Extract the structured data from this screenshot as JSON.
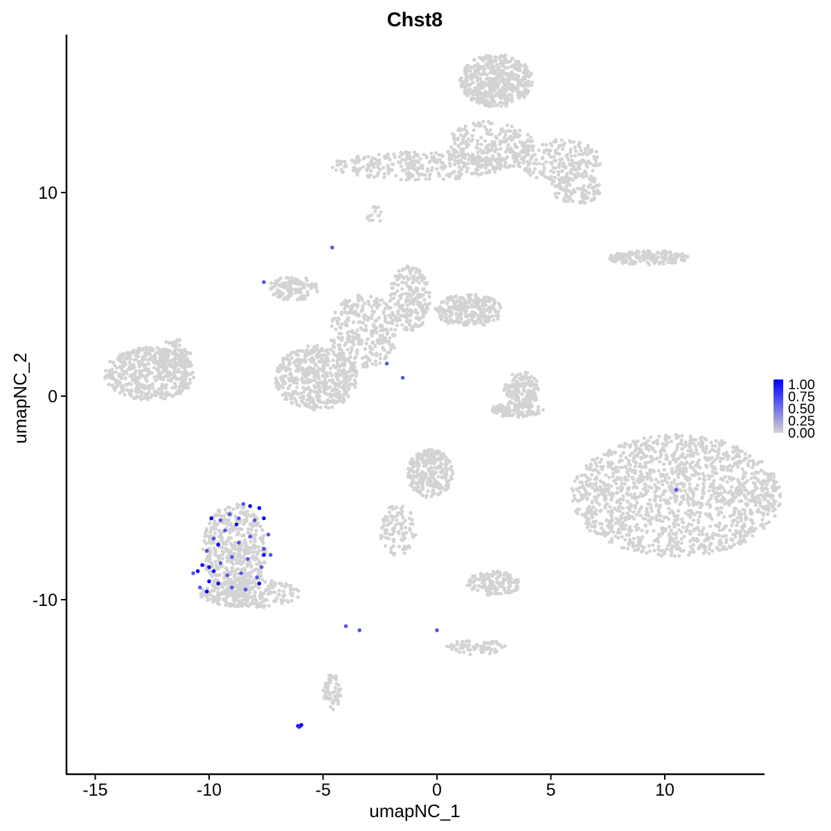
{
  "chart_data": {
    "type": "scatter",
    "title": "Chst8",
    "xlabel": "umapNC_1",
    "ylabel": "umapNC_2",
    "xlim": [
      -16.5,
      14.4
    ],
    "ylim": [
      -18.5,
      17.7
    ],
    "xticks": [
      -15,
      -10,
      -5,
      0,
      5,
      10
    ],
    "yticks": [
      -10,
      0,
      10
    ],
    "grid": false,
    "legend": {
      "placement": "right",
      "labels": [
        "1.00",
        "0.75",
        "0.50",
        "0.25",
        "0.00"
      ],
      "low_color": "#d3d3d3",
      "high_color": "#0000ff"
    },
    "background_color": "#d3d3d3",
    "clusters": [
      {
        "cx": 2.6,
        "cy": 15.5,
        "rx": 1.6,
        "ry": 1.3,
        "n": 500
      },
      {
        "cx": 2.3,
        "cy": 12.3,
        "rx": 2.0,
        "ry": 1.2,
        "n": 250
      },
      {
        "cx": -0.8,
        "cy": 11.3,
        "rx": 3.8,
        "ry": 0.7,
        "n": 300
      },
      {
        "cx": 5.3,
        "cy": 11.6,
        "rx": 1.9,
        "ry": 1.0,
        "n": 200
      },
      {
        "cx": 6.1,
        "cy": 10.2,
        "rx": 1.1,
        "ry": 0.8,
        "n": 120
      },
      {
        "cx": -2.7,
        "cy": 8.9,
        "rx": 0.4,
        "ry": 0.4,
        "n": 15
      },
      {
        "cx": 9.3,
        "cy": 6.8,
        "rx": 1.8,
        "ry": 0.35,
        "n": 150
      },
      {
        "cx": -12.6,
        "cy": 1.1,
        "rx": 2.0,
        "ry": 1.3,
        "n": 500
      },
      {
        "cx": -11.5,
        "cy": 2.1,
        "rx": 0.7,
        "ry": 0.7,
        "n": 60
      },
      {
        "cx": -5.3,
        "cy": 0.9,
        "rx": 1.8,
        "ry": 1.6,
        "n": 500
      },
      {
        "cx": -3.2,
        "cy": 3.2,
        "rx": 1.5,
        "ry": 1.8,
        "n": 300
      },
      {
        "cx": -1.2,
        "cy": 4.8,
        "rx": 0.9,
        "ry": 1.6,
        "n": 200
      },
      {
        "cx": 1.4,
        "cy": 4.2,
        "rx": 1.5,
        "ry": 0.8,
        "n": 250
      },
      {
        "cx": -6.3,
        "cy": 5.3,
        "rx": 1.1,
        "ry": 0.6,
        "n": 120
      },
      {
        "cx": 3.7,
        "cy": 0.3,
        "rx": 0.8,
        "ry": 0.9,
        "n": 150
      },
      {
        "cx": 3.5,
        "cy": -0.7,
        "rx": 1.2,
        "ry": 0.35,
        "n": 100
      },
      {
        "cx": 10.5,
        "cy": -4.9,
        "rx": 4.6,
        "ry": 3.0,
        "n": 1500
      },
      {
        "cx": -0.3,
        "cy": -3.8,
        "rx": 1.0,
        "ry": 1.2,
        "n": 250
      },
      {
        "cx": -1.7,
        "cy": -6.6,
        "rx": 0.8,
        "ry": 1.3,
        "n": 100
      },
      {
        "cx": 2.5,
        "cy": -9.2,
        "rx": 1.2,
        "ry": 0.6,
        "n": 150
      },
      {
        "cx": -8.2,
        "cy": -9.7,
        "rx": 2.2,
        "ry": 0.7,
        "n": 250
      },
      {
        "cx": -4.6,
        "cy": -14.5,
        "rx": 0.4,
        "ry": 0.9,
        "n": 60
      },
      {
        "cx": 1.7,
        "cy": -12.3,
        "rx": 1.3,
        "ry": 0.4,
        "n": 70
      },
      {
        "cx": -8.9,
        "cy": -7.6,
        "rx": 1.4,
        "ry": 2.3,
        "n": 500
      }
    ],
    "expressing_cells": [
      {
        "x": -8.5,
        "y": -5.3,
        "v": 0.6
      },
      {
        "x": -8.2,
        "y": -5.4,
        "v": 1.0
      },
      {
        "x": -7.8,
        "y": -5.5,
        "v": 1.0
      },
      {
        "x": -9.1,
        "y": -5.8,
        "v": 0.6
      },
      {
        "x": -8.7,
        "y": -6.0,
        "v": 0.6
      },
      {
        "x": -9.5,
        "y": -6.1,
        "v": 0.6
      },
      {
        "x": -9.9,
        "y": -6.0,
        "v": 1.0
      },
      {
        "x": -8.8,
        "y": -6.3,
        "v": 1.0
      },
      {
        "x": -8.0,
        "y": -6.1,
        "v": 0.6
      },
      {
        "x": -7.6,
        "y": -6.0,
        "v": 1.0
      },
      {
        "x": -9.3,
        "y": -6.6,
        "v": 0.6
      },
      {
        "x": -8.2,
        "y": -6.9,
        "v": 0.6
      },
      {
        "x": -7.4,
        "y": -6.8,
        "v": 0.6
      },
      {
        "x": -9.8,
        "y": -7.0,
        "v": 0.6
      },
      {
        "x": -9.6,
        "y": -7.3,
        "v": 1.0
      },
      {
        "x": -8.7,
        "y": -7.2,
        "v": 0.6
      },
      {
        "x": -7.6,
        "y": -7.5,
        "v": 0.6
      },
      {
        "x": -7.3,
        "y": -7.8,
        "v": 0.6
      },
      {
        "x": -10.1,
        "y": -7.6,
        "v": 0.6
      },
      {
        "x": -9.0,
        "y": -7.9,
        "v": 0.6
      },
      {
        "x": -7.6,
        "y": -7.8,
        "v": 1.0
      },
      {
        "x": -9.5,
        "y": -8.2,
        "v": 0.6
      },
      {
        "x": -8.3,
        "y": -8.0,
        "v": 0.6
      },
      {
        "x": -7.7,
        "y": -8.4,
        "v": 0.6
      },
      {
        "x": -10.3,
        "y": -8.3,
        "v": 1.0
      },
      {
        "x": -10.0,
        "y": -8.4,
        "v": 1.0
      },
      {
        "x": -9.8,
        "y": -8.6,
        "v": 1.0
      },
      {
        "x": -10.5,
        "y": -8.6,
        "v": 1.0
      },
      {
        "x": -10.7,
        "y": -8.7,
        "v": 0.6
      },
      {
        "x": -9.2,
        "y": -8.8,
        "v": 0.6
      },
      {
        "x": -8.6,
        "y": -8.7,
        "v": 0.6
      },
      {
        "x": -7.9,
        "y": -8.9,
        "v": 0.6
      },
      {
        "x": -10.0,
        "y": -9.1,
        "v": 1.0
      },
      {
        "x": -9.6,
        "y": -9.2,
        "v": 1.0
      },
      {
        "x": -10.4,
        "y": -9.4,
        "v": 0.6
      },
      {
        "x": -10.1,
        "y": -9.6,
        "v": 1.0
      },
      {
        "x": -9.0,
        "y": -9.4,
        "v": 0.6
      },
      {
        "x": -8.4,
        "y": -9.5,
        "v": 0.6
      },
      {
        "x": -7.8,
        "y": -9.2,
        "v": 1.0
      },
      {
        "x": -4.0,
        "y": -11.3,
        "v": 0.6
      },
      {
        "x": -3.4,
        "y": -11.5,
        "v": 0.6
      },
      {
        "x": 0.0,
        "y": -11.5,
        "v": 0.6
      },
      {
        "x": -4.6,
        "y": 7.3,
        "v": 0.6
      },
      {
        "x": -7.6,
        "y": 5.6,
        "v": 0.6
      },
      {
        "x": -2.2,
        "y": 1.6,
        "v": 0.6
      },
      {
        "x": -1.5,
        "y": 0.9,
        "v": 0.6
      },
      {
        "x": 10.5,
        "y": -4.6,
        "v": 0.6
      },
      {
        "x": -6.0,
        "y": -16.2,
        "v": 1.0
      },
      {
        "x": -6.1,
        "y": -16.2,
        "v": 1.0
      },
      {
        "x": -5.95,
        "y": -16.15,
        "v": 1.0
      },
      {
        "x": -6.05,
        "y": -16.25,
        "v": 0.8
      }
    ]
  }
}
